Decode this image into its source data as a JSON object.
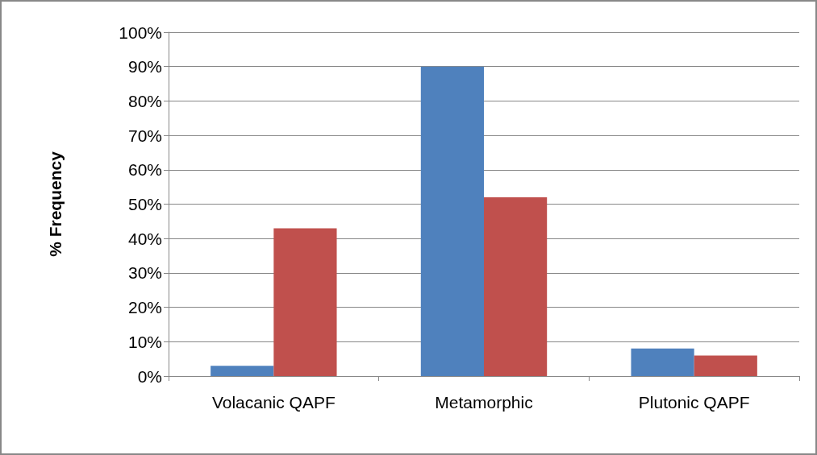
{
  "chart_data": {
    "type": "bar",
    "ylabel": "% Frequency",
    "categories": [
      "Volacanic QAPF",
      "Metamorphic",
      "Plutonic QAPF"
    ],
    "series": [
      {
        "color": "#4f81bd",
        "values": [
          3,
          90,
          8
        ]
      },
      {
        "color": "#c0504d",
        "values": [
          43,
          52,
          6
        ]
      }
    ],
    "ylim": [
      0,
      100
    ],
    "yticks": [
      {
        "value": 0,
        "label": "0%"
      },
      {
        "value": 10,
        "label": "10%"
      },
      {
        "value": 20,
        "label": "20%"
      },
      {
        "value": 30,
        "label": "30%"
      },
      {
        "value": 40,
        "label": "40%"
      },
      {
        "value": 50,
        "label": "50%"
      },
      {
        "value": 60,
        "label": "60%"
      },
      {
        "value": 70,
        "label": "70%"
      },
      {
        "value": 80,
        "label": "80%"
      },
      {
        "value": 90,
        "label": "90%"
      },
      {
        "value": 100,
        "label": "100%"
      }
    ],
    "grid": true
  }
}
